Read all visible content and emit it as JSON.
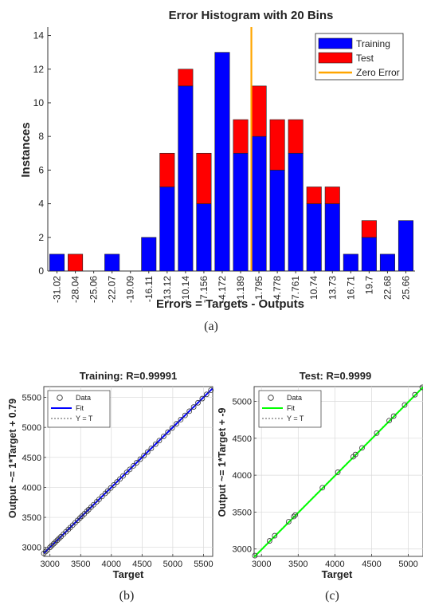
{
  "histogram": {
    "type": "bar",
    "title": "Error Histogram with 20 Bins",
    "xlabel": "Errors = Targets - Outputs",
    "ylabel": "Instances",
    "ylim": [
      0,
      14.5
    ],
    "yticks": [
      0,
      2,
      4,
      6,
      8,
      10,
      12,
      14
    ],
    "categories": [
      "-31.02",
      "-28.04",
      "-25.06",
      "-22.07",
      "-19.09",
      "-16.11",
      "-13.12",
      "-10.14",
      "-7.156",
      "-4.172",
      "-1.189",
      "1.795",
      "4.778",
      "7.761",
      "10.74",
      "13.73",
      "16.71",
      "19.7",
      "22.68",
      "25.66"
    ],
    "series": [
      {
        "name": "Training",
        "color": "#0000ff",
        "values": [
          1,
          0,
          0,
          1,
          0,
          2,
          5,
          11,
          4,
          13,
          7,
          8,
          6,
          7,
          4,
          4,
          1,
          2,
          1,
          3
        ]
      },
      {
        "name": "Test",
        "color": "#ff0000",
        "values": [
          0,
          1,
          0,
          0,
          0,
          0,
          2,
          1,
          3,
          0,
          2,
          3,
          3,
          2,
          1,
          1,
          0,
          1,
          0,
          0
        ]
      }
    ],
    "zero_error": {
      "label": "Zero Error",
      "color": "#ffa500",
      "x_between": [
        "-1.189",
        "1.795"
      ]
    },
    "legend_position": "top-right",
    "caption": "(a)"
  },
  "regressions": [
    {
      "type": "scatter",
      "title": "Training: R=0.99991",
      "xlabel": "Target",
      "ylabel": "Output ~= 1*Target + 0.79",
      "xlim": [
        2900,
        5650
      ],
      "ylim": [
        2850,
        5680
      ],
      "xticks": [
        3000,
        3500,
        4000,
        4500,
        5000,
        5500
      ],
      "yticks": [
        3000,
        3500,
        4000,
        4500,
        5000,
        5500
      ],
      "fit_color": "#0000ff",
      "fit": {
        "slope": 1,
        "intercept": 0.79
      },
      "legend": [
        "Data",
        "Fit",
        "Y = T"
      ],
      "legend_position": "top-left",
      "points": [
        2900,
        2930,
        2960,
        3000,
        3030,
        3060,
        3090,
        3120,
        3150,
        3180,
        3220,
        3260,
        3300,
        3330,
        3370,
        3410,
        3450,
        3490,
        3520,
        3560,
        3600,
        3630,
        3670,
        3710,
        3760,
        3800,
        3850,
        3900,
        3940,
        3990,
        4040,
        4090,
        4140,
        4190,
        4250,
        4300,
        4360,
        4410,
        4470,
        4530,
        4590,
        4650,
        4720,
        4780,
        4850,
        4920,
        4990,
        5060,
        5130,
        5200,
        5270,
        5340,
        5410,
        5480,
        5550,
        5620
      ],
      "caption": "(b)"
    },
    {
      "type": "scatter",
      "title": "Test: R=0.9999",
      "xlabel": "Target",
      "ylabel": "Output ~= 1*Target + -9",
      "xlim": [
        2900,
        5200
      ],
      "ylim": [
        2900,
        5200
      ],
      "xticks": [
        3000,
        3500,
        4000,
        4500,
        5000
      ],
      "yticks": [
        3000,
        3500,
        4000,
        4500,
        5000
      ],
      "fit_color": "#00ff00",
      "fit": {
        "slope": 1,
        "intercept": -9
      },
      "legend": [
        "Data",
        "Fit",
        "Y = T"
      ],
      "legend_position": "top-left",
      "points": [
        2910,
        3110,
        3180,
        3370,
        3440,
        3460,
        3830,
        4040,
        4250,
        4280,
        4370,
        4570,
        4740,
        4800,
        4950,
        5090,
        5190
      ],
      "caption": "(c)"
    }
  ]
}
